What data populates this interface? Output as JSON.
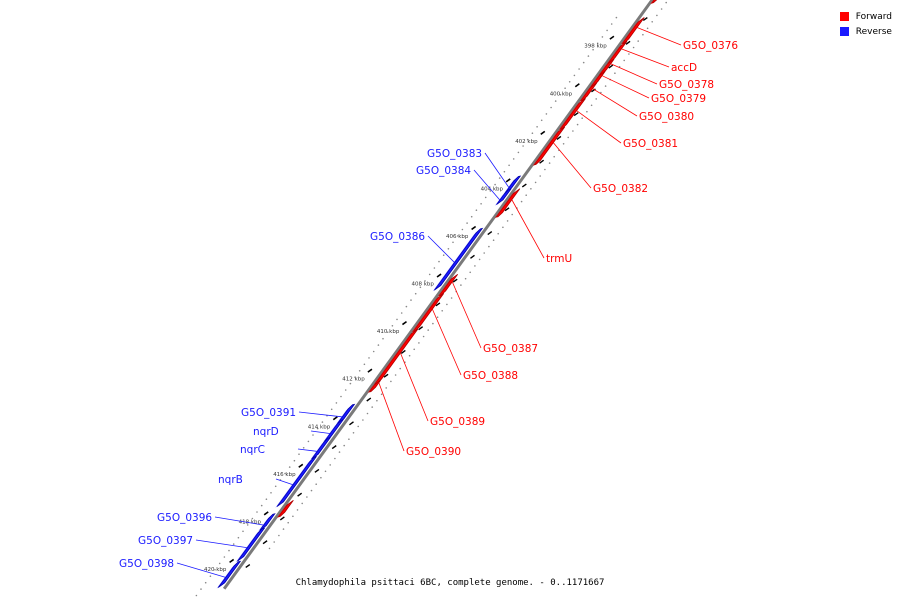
{
  "legend": {
    "forward_label": "Forward",
    "reverse_label": "Reverse",
    "forward_color": "#ff0000",
    "reverse_color": "#1a1aff"
  },
  "caption": "Chlamydophila psittaci 6BC, complete genome. - 0..1171667",
  "ticks": [
    {
      "kbp": 398,
      "label": "398 kbp"
    },
    {
      "kbp": 400,
      "label": "400 kbp"
    },
    {
      "kbp": 402,
      "label": "402 kbp"
    },
    {
      "kbp": 404,
      "label": "404 kbp"
    },
    {
      "kbp": 406,
      "label": "406 kbp"
    },
    {
      "kbp": 408,
      "label": "408 kbp"
    },
    {
      "kbp": 410,
      "label": "410 kbp"
    },
    {
      "kbp": 412,
      "label": "412 kbp"
    },
    {
      "kbp": 414,
      "label": "414 kbp"
    },
    {
      "kbp": 416,
      "label": "416 kbp"
    },
    {
      "kbp": 418,
      "label": "418 kbp"
    },
    {
      "kbp": 420,
      "label": "420 kbp"
    }
  ],
  "genes": [
    {
      "name": "",
      "strand": "forward",
      "start_kbp": 396.7,
      "end_kbp": 397.5
    },
    {
      "name": "G5O_0376",
      "strand": "forward",
      "start_kbp": 398.3,
      "end_kbp": 399.2
    },
    {
      "name": "accD",
      "strand": "forward",
      "start_kbp": 399.3,
      "end_kbp": 400.0
    },
    {
      "name": "G5O_0378",
      "strand": "forward",
      "start_kbp": 400.05,
      "end_kbp": 400.5
    },
    {
      "name": "G5O_0379",
      "strand": "forward",
      "start_kbp": 400.55,
      "end_kbp": 401.0
    },
    {
      "name": "G5O_0380",
      "strand": "forward",
      "start_kbp": 401.05,
      "end_kbp": 401.6
    },
    {
      "name": "G5O_0381",
      "strand": "forward",
      "start_kbp": 401.7,
      "end_kbp": 402.8
    },
    {
      "name": "G5O_0382",
      "strand": "forward",
      "start_kbp": 402.9,
      "end_kbp": 404.3
    },
    {
      "name": "G5O_0383",
      "strand": "reverse",
      "start_kbp": 404.4,
      "end_kbp": 404.9
    },
    {
      "name": "G5O_0384",
      "strand": "reverse",
      "start_kbp": 404.95,
      "end_kbp": 405.4
    },
    {
      "name": "trmU",
      "strand": "forward",
      "start_kbp": 405.5,
      "end_kbp": 406.5
    },
    {
      "name": "G5O_0386",
      "strand": "reverse",
      "start_kbp": 406.6,
      "end_kbp": 409.0
    },
    {
      "name": "G5O_0387",
      "strand": "forward",
      "start_kbp": 409.1,
      "end_kbp": 409.8
    },
    {
      "name": "G5O_0388",
      "strand": "forward",
      "start_kbp": 409.9,
      "end_kbp": 411.3
    },
    {
      "name": "G5O_0389",
      "strand": "forward",
      "start_kbp": 411.4,
      "end_kbp": 413.5
    },
    {
      "name": "G5O_0390",
      "strand": "forward",
      "start_kbp": 413.55,
      "end_kbp": 413.85
    },
    {
      "name": "G5O_0391",
      "strand": "reverse",
      "start_kbp": 414.0,
      "end_kbp": 414.6
    },
    {
      "name": "nqrD",
      "strand": "reverse",
      "start_kbp": 414.65,
      "end_kbp": 415.35
    },
    {
      "name": "nqrC",
      "strand": "reverse",
      "start_kbp": 415.4,
      "end_kbp": 416.1
    },
    {
      "name": "nqrB",
      "strand": "reverse",
      "start_kbp": 416.2,
      "end_kbp": 418.1
    },
    {
      "name": "",
      "strand": "forward",
      "start_kbp": 418.6,
      "end_kbp": 419.1
    },
    {
      "name": "G5O_0396",
      "strand": "reverse",
      "start_kbp": 418.6,
      "end_kbp": 419.1
    },
    {
      "name": "G5O_0397",
      "strand": "reverse",
      "start_kbp": 419.2,
      "end_kbp": 420.4
    },
    {
      "name": "G5O_0398",
      "strand": "reverse",
      "start_kbp": 420.6,
      "end_kbp": 421.5
    }
  ]
}
